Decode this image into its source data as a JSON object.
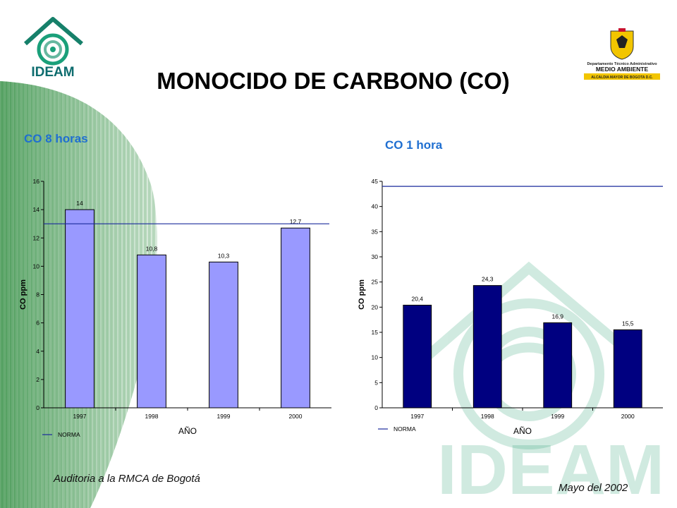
{
  "title": "MONOCIDO DE CARBONO (CO)",
  "logo_left_text": "IDEAM",
  "logo_right": {
    "line1": "Departamento Técnico Administrativo",
    "line2": "MEDIO AMBIENTE",
    "line3": "ALCALDIA MAYOR DE BOGOTA D.C."
  },
  "watermark_text": "IDEAM",
  "footer": {
    "left": "Auditoria a la RMCA de Bogotá",
    "right": "Mayo del 2002"
  },
  "colors": {
    "bar_chart1": "#9999ff",
    "bar_chart2": "#000080",
    "norma_line": "#1a2a9c",
    "subtitle": "#1f6fd1",
    "stripe_green": "#2e8b3e"
  },
  "chart_data": [
    {
      "type": "bar",
      "title": "CO 8 horas",
      "categories": [
        "1997",
        "1998",
        "1999",
        "2000"
      ],
      "values": [
        14,
        10.8,
        10.3,
        12.7
      ],
      "value_labels": [
        "14",
        "10,8",
        "10,3",
        "12,7"
      ],
      "ylabel": "CO ppm",
      "xlabel": "AÑO",
      "ylim": [
        0,
        16
      ],
      "yticks": [
        0,
        2,
        4,
        6,
        8,
        10,
        12,
        14,
        16
      ],
      "norma": 13,
      "legend": {
        "label": "NORMA",
        "position": "bottom-left"
      }
    },
    {
      "type": "bar",
      "title": "CO 1 hora",
      "categories": [
        "1997",
        "1998",
        "1999",
        "2000"
      ],
      "values": [
        20.4,
        24.3,
        16.9,
        15.5
      ],
      "value_labels": [
        "20,4",
        "24,3",
        "16,9",
        "15,5"
      ],
      "ylabel": "CO ppm",
      "xlabel": "AÑO",
      "ylim": [
        0,
        45
      ],
      "yticks": [
        0,
        5,
        10,
        15,
        20,
        25,
        30,
        35,
        40,
        45
      ],
      "norma": 44,
      "legend": {
        "label": "NORMA",
        "position": "bottom-left"
      }
    }
  ]
}
